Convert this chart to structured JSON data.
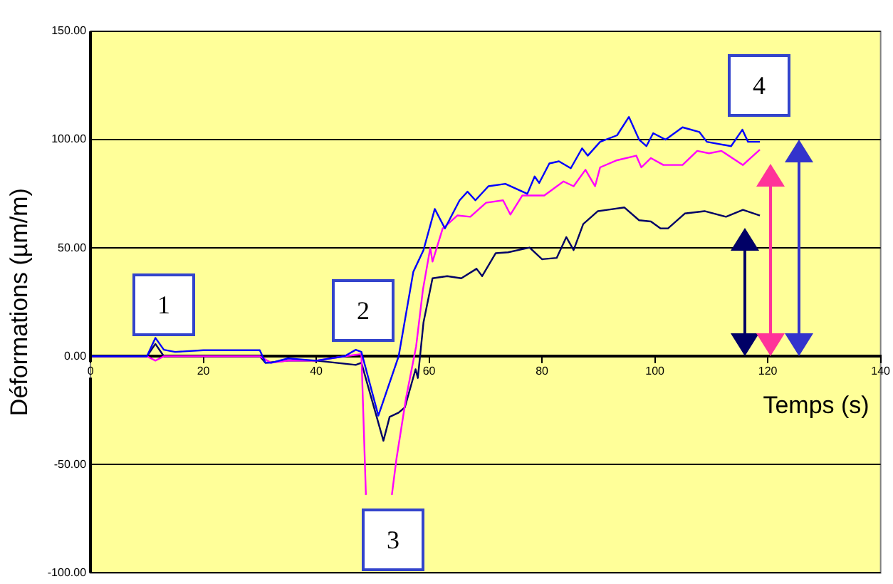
{
  "chart_data": {
    "type": "line",
    "xlabel": "Temps (s)",
    "ylabel": "Déformations (µm/m)",
    "xlim": [
      0,
      140
    ],
    "xticks": [
      0,
      20,
      40,
      60,
      80,
      100,
      120,
      140
    ],
    "ylim": [
      -100,
      150
    ],
    "yticks": [
      {
        "value": -100,
        "label": "-100.00"
      },
      {
        "value": -50,
        "label": "-50.00"
      },
      {
        "value": 0,
        "label": "0.00"
      },
      {
        "value": 50,
        "label": "50.00"
      },
      {
        "value": 100,
        "label": "100.00"
      },
      {
        "value": 150,
        "label": "150.00"
      }
    ],
    "grid": "y",
    "legend": false,
    "marker": "none",
    "line_style": "solid",
    "annotations": [
      "1",
      "2",
      "3",
      "4"
    ],
    "series": [
      {
        "color": "#0000ff",
        "x": [
          0,
          10,
          11.5,
          13,
          15,
          20,
          30,
          31,
          32,
          35,
          40,
          45,
          47,
          48,
          51,
          54.6,
          57.2,
          59,
          61,
          62.8,
          65.4,
          66.8,
          68.2,
          70.5,
          73.5,
          77.4,
          78.7,
          79.5,
          81.3,
          83,
          85.1,
          87.1,
          88.1,
          90.3,
          93.3,
          95.4,
          97.2,
          98.5,
          99.7,
          101.9,
          104.9,
          107.9,
          109.2,
          113.5,
          115.5,
          116.5,
          118.6
        ],
        "values": [
          0,
          0,
          8.5,
          3,
          2,
          2.8,
          2.8,
          -3,
          -3,
          -1,
          -2,
          0,
          3,
          2,
          -27.4,
          0,
          39,
          49,
          68,
          59,
          72,
          76,
          72,
          78.5,
          79.6,
          75,
          83,
          80,
          89,
          90,
          86.8,
          96,
          92.6,
          99,
          102,
          110.5,
          100,
          97,
          103,
          100,
          105.7,
          103.5,
          99,
          97,
          104.6,
          99,
          99
        ]
      },
      {
        "color": "#ff00ff",
        "x": [
          0,
          10,
          11.5,
          13,
          20,
          30,
          32,
          35,
          40,
          45,
          48,
          48.8,
          49.5,
          52.5,
          53.4,
          54.2,
          55.9,
          57.7,
          58.9,
          60.2,
          60.6,
          62.4,
          65,
          67.3,
          70.1,
          73.1,
          74.4,
          76.5,
          80.4,
          83.8,
          85.6,
          87.7,
          89.4,
          90.3,
          93.3,
          96.7,
          97.6,
          99.3,
          101.5,
          104.9,
          107.5,
          109.6,
          111.8,
          115.6,
          118.6
        ],
        "values": [
          0,
          0,
          -2,
          0,
          0,
          0,
          -3,
          -2,
          -2,
          0,
          1,
          -64,
          null,
          null,
          -64,
          -47.6,
          -19.4,
          4.6,
          30.7,
          50,
          43.7,
          59,
          65,
          64.4,
          70.9,
          72,
          65.4,
          74.2,
          74.2,
          80.7,
          78.5,
          86.1,
          78.5,
          87.2,
          90.5,
          92.6,
          87.2,
          91.5,
          88.3,
          88.3,
          94.8,
          93.7,
          94.8,
          88.3,
          95.4
        ]
      },
      {
        "color": "#000066",
        "x": [
          0,
          10,
          11.5,
          13,
          20,
          30,
          31,
          35,
          40,
          47,
          48,
          51.9,
          53,
          54.6,
          55.7,
          57.6,
          58,
          59,
          60.6,
          63.2,
          65.7,
          68.4,
          69.4,
          71.8,
          74,
          77.8,
          80,
          82.6,
          84.3,
          85.6,
          87.3,
          89.9,
          91.6,
          94.6,
          97.2,
          99.3,
          101,
          102.3,
          105.3,
          108.8,
          112.6,
          115.6,
          118.6
        ],
        "values": [
          0,
          0,
          5.7,
          0,
          0,
          0,
          -3,
          -2,
          -2,
          -4,
          -3,
          -39,
          -28,
          -26,
          -23.6,
          -6,
          -10,
          15.6,
          36,
          37,
          36,
          40.4,
          37,
          47.6,
          48,
          50.2,
          44.8,
          45.4,
          55,
          49,
          61,
          67,
          67.6,
          68.7,
          62.8,
          62.2,
          59,
          59,
          65.9,
          67,
          64.4,
          67.6,
          65
        ]
      }
    ]
  }
}
